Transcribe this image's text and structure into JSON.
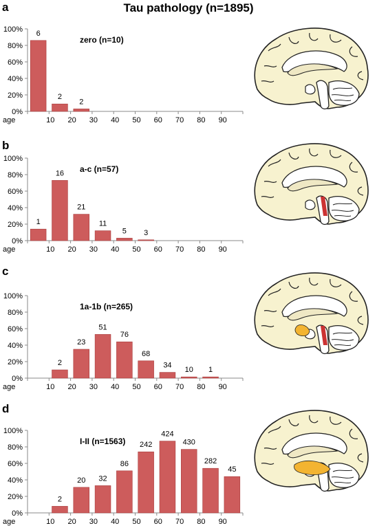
{
  "title": "Tau pathology (n=1895)",
  "colors": {
    "bar": "#cd5c5c",
    "bar_edge": "#a83c3c",
    "axis": "#8a8a8a",
    "brain_fill": "#f7f2cf",
    "highlight_orange": "#f3b431",
    "highlight_red": "#cc3333"
  },
  "chart_data": [
    {
      "panel": "a",
      "type": "bar",
      "label": "zero (n=10)",
      "xlabel": "age",
      "categories": [
        "10",
        "20",
        "30",
        "40",
        "50",
        "60",
        "70",
        "80",
        "90"
      ],
      "y_tick_labels": [
        "0%",
        "20%",
        "40%",
        "60%",
        "80%",
        "100%"
      ],
      "ylim": [
        0,
        100
      ],
      "bars": [
        {
          "x": 5,
          "value": 86,
          "label": "6"
        },
        {
          "x": 15,
          "value": 9,
          "label": "2"
        },
        {
          "x": 25,
          "value": 3,
          "label": "2"
        }
      ]
    },
    {
      "panel": "b",
      "type": "bar",
      "label": "a-c (n=57)",
      "xlabel": "age",
      "categories": [
        "10",
        "20",
        "30",
        "40",
        "50",
        "60",
        "70",
        "80",
        "90"
      ],
      "y_tick_labels": [
        "0%",
        "20%",
        "40%",
        "60%",
        "80%",
        "100%"
      ],
      "ylim": [
        0,
        100
      ],
      "bars": [
        {
          "x": 5,
          "value": 14,
          "label": "1"
        },
        {
          "x": 15,
          "value": 73,
          "label": "16"
        },
        {
          "x": 25,
          "value": 32,
          "label": "21"
        },
        {
          "x": 35,
          "value": 12,
          "label": "11"
        },
        {
          "x": 45,
          "value": 3,
          "label": "5"
        },
        {
          "x": 55,
          "value": 1,
          "label": "3"
        }
      ]
    },
    {
      "panel": "c",
      "type": "bar",
      "label": "1a-1b (n=265)",
      "xlabel": "age",
      "categories": [
        "10",
        "20",
        "30",
        "40",
        "50",
        "60",
        "70",
        "80",
        "90"
      ],
      "y_tick_labels": [
        "0%",
        "20%",
        "40%",
        "60%",
        "80%",
        "100%"
      ],
      "ylim": [
        0,
        100
      ],
      "bars": [
        {
          "x": 15,
          "value": 10,
          "label": "2"
        },
        {
          "x": 25,
          "value": 35,
          "label": "23"
        },
        {
          "x": 35,
          "value": 53,
          "label": "51"
        },
        {
          "x": 45,
          "value": 44,
          "label": "76"
        },
        {
          "x": 55,
          "value": 21,
          "label": "68"
        },
        {
          "x": 65,
          "value": 7,
          "label": "34"
        },
        {
          "x": 75,
          "value": 1.5,
          "label": "10"
        },
        {
          "x": 85,
          "value": 1.5,
          "label": "1"
        }
      ]
    },
    {
      "panel": "d",
      "type": "bar",
      "label": "I-II (n=1563)",
      "xlabel": "age",
      "categories": [
        "10",
        "20",
        "30",
        "40",
        "50",
        "60",
        "70",
        "80",
        "90"
      ],
      "y_tick_labels": [
        "0%",
        "20%",
        "40%",
        "60%",
        "80%",
        "100%"
      ],
      "ylim": [
        0,
        100
      ],
      "bars": [
        {
          "x": 15,
          "value": 8,
          "label": "2"
        },
        {
          "x": 25,
          "value": 31,
          "label": "20"
        },
        {
          "x": 35,
          "value": 33,
          "label": "32"
        },
        {
          "x": 45,
          "value": 51,
          "label": "86"
        },
        {
          "x": 55,
          "value": 74,
          "label": "242"
        },
        {
          "x": 65,
          "value": 87,
          "label": "424"
        },
        {
          "x": 75,
          "value": 77,
          "label": "430"
        },
        {
          "x": 85,
          "value": 54,
          "label": "282"
        },
        {
          "x": 95,
          "value": 44,
          "label": "45"
        }
      ]
    }
  ]
}
